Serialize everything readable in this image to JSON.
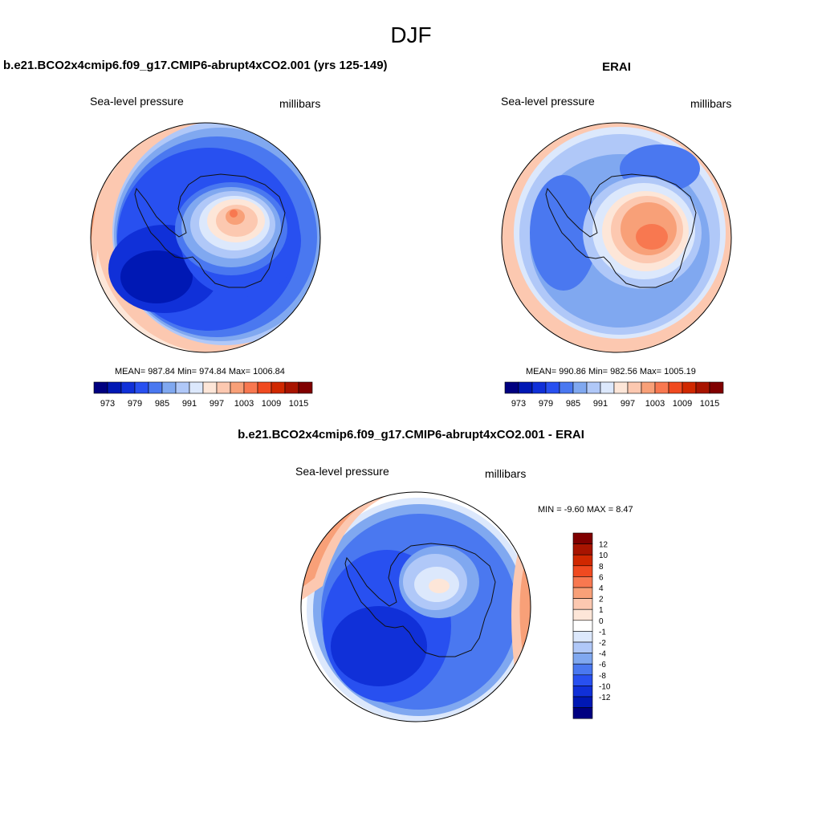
{
  "figure": {
    "season": "DJF"
  },
  "panels": {
    "model": {
      "title": "b.e21.BCO2x4cmip6.f09_g17.CMIP6-abrupt4xCO2.001 (yrs 125-149)",
      "variable": "Sea-level pressure",
      "units": "millibars",
      "stats": "MEAN= 987.84  Min= 974.84  Max= 1006.84",
      "mean": 987.84,
      "min": 974.84,
      "max": 1006.84
    },
    "obs": {
      "title": "ERAI",
      "variable": "Sea-level pressure",
      "units": "millibars",
      "stats": "MEAN= 990.86  Min= 982.56  Max= 1005.19",
      "mean": 990.86,
      "min": 982.56,
      "max": 1005.19
    },
    "diff": {
      "title": "b.e21.BCO2x4cmip6.f09_g17.CMIP6-abrupt4xCO2.001 - ERAI",
      "variable": "Sea-level pressure",
      "units": "millibars",
      "stats": "MIN =  -9.60 MAX =   8.47",
      "min": -9.6,
      "max": 8.47
    }
  },
  "colorbars": {
    "abs": {
      "colors": [
        "#000080",
        "#0018b4",
        "#1030d8",
        "#2850f0",
        "#4a78f0",
        "#80a8f0",
        "#b0c8f8",
        "#dce8fc",
        "#fde6d8",
        "#fcc8b0",
        "#f8a078",
        "#f87850",
        "#f04a20",
        "#d02800",
        "#a81400",
        "#800000"
      ],
      "labels": [
        "973",
        "979",
        "985",
        "991",
        "997",
        "1003",
        "1009",
        "1015"
      ]
    },
    "diff": {
      "colors": [
        "#800000",
        "#a81400",
        "#d02800",
        "#f04a20",
        "#f87850",
        "#f8a078",
        "#fcc8b0",
        "#fde6d8",
        "#ffffff",
        "#dce8fc",
        "#b0c8f8",
        "#80a8f0",
        "#4a78f0",
        "#2850f0",
        "#1030d8",
        "#0018b4",
        "#000080"
      ],
      "labels": [
        "12",
        "10",
        "8",
        "6",
        "4",
        "2",
        "1",
        "0",
        "-1",
        "-2",
        "-4",
        "-6",
        "-8",
        "-10",
        "-12"
      ]
    }
  }
}
